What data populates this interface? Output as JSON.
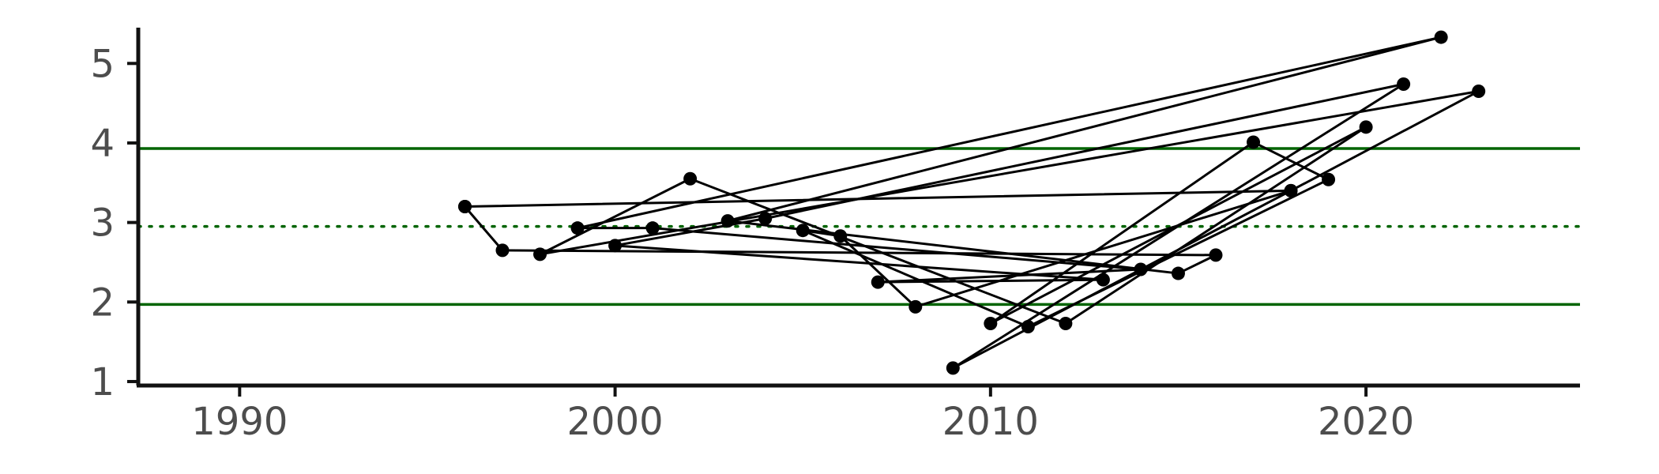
{
  "chart_data": {
    "type": "line",
    "title": "",
    "xlabel": "",
    "ylabel": "",
    "xlim": [
      1987.3,
      2025.7
    ],
    "ylim": [
      0.95,
      5.45
    ],
    "x_ticks": [
      1990,
      2000,
      2010,
      2020
    ],
    "x_tick_labels": [
      "1990",
      "2000",
      "2010",
      "2020"
    ],
    "y_ticks": [
      1,
      2,
      3,
      4,
      5
    ],
    "y_tick_labels": [
      "1",
      "2",
      "3",
      "4",
      "5"
    ],
    "grid": false,
    "legend": "none",
    "colors": {
      "series": "#000000",
      "reference": "#006400",
      "axis": "#111111",
      "tick_text": "#4d4d4d"
    },
    "reference_lines": [
      {
        "y": 3.93,
        "style": "solid"
      },
      {
        "y": 2.95,
        "style": "dotted"
      },
      {
        "y": 1.97,
        "style": "solid"
      }
    ],
    "series": [
      {
        "points": [
          {
            "x": 1996,
            "y": 3.2
          },
          {
            "x": 1997,
            "y": 2.65
          },
          {
            "x": 2016,
            "y": 2.59
          },
          {
            "x": 2015,
            "y": 2.36
          },
          {
            "x": 2003,
            "y": 3.02
          },
          {
            "x": 2022,
            "y": 5.33
          },
          {
            "x": 1999,
            "y": 2.93
          },
          {
            "x": 2001,
            "y": 2.93
          },
          {
            "x": 2014,
            "y": 2.41
          },
          {
            "x": 2007,
            "y": 2.25
          },
          {
            "x": 2013,
            "y": 2.28
          },
          {
            "x": 2000,
            "y": 2.71
          },
          {
            "x": 2004,
            "y": 3.05
          },
          {
            "x": 2021,
            "y": 4.74
          },
          {
            "x": 2009,
            "y": 1.17
          },
          {
            "x": 2018,
            "y": 3.4
          },
          {
            "x": 2023,
            "y": 4.65
          },
          {
            "x": 1998,
            "y": 2.6
          },
          {
            "x": 2002,
            "y": 3.55
          },
          {
            "x": 2012,
            "y": 1.73
          },
          {
            "x": 2020,
            "y": 4.2
          },
          {
            "x": 2010,
            "y": 1.73
          },
          {
            "x": 2017,
            "y": 4.01
          },
          {
            "x": 2019,
            "y": 3.54
          },
          {
            "x": 2011,
            "y": 1.69
          },
          {
            "x": 2005,
            "y": 2.9
          },
          {
            "x": 2006,
            "y": 2.83
          },
          {
            "x": 2008,
            "y": 1.94
          },
          {
            "x": 2018,
            "y": 3.4
          },
          {
            "x": 1996,
            "y": 3.2
          }
        ]
      }
    ]
  }
}
